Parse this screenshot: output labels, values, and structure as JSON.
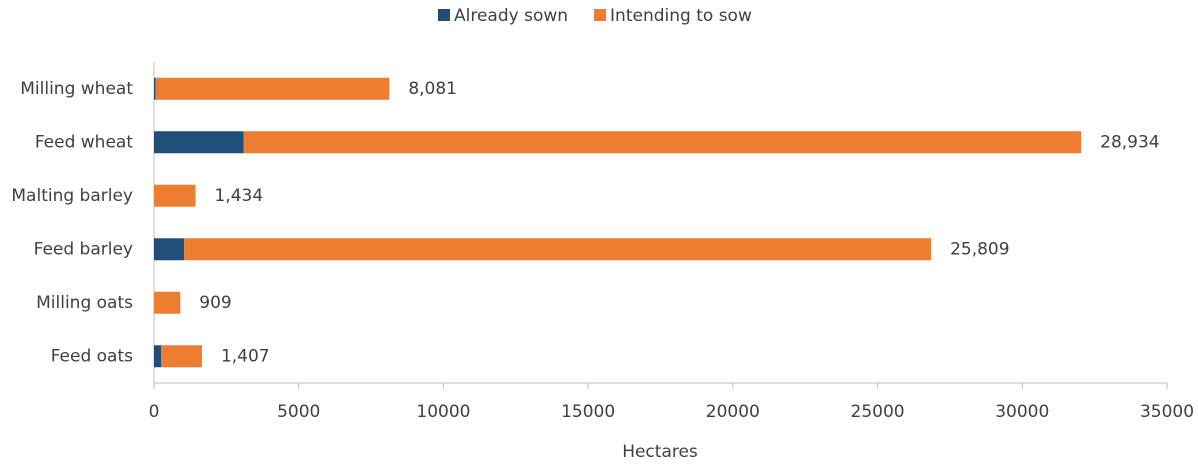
{
  "chart_data": {
    "type": "hbar-stacked",
    "categories": [
      "Milling wheat",
      "Feed wheat",
      "Malting barley",
      "Feed barley",
      "Milling oats",
      "Feed oats"
    ],
    "series": [
      {
        "name": "Already sown",
        "color": "#1f4e79",
        "values": [
          50,
          3100,
          0,
          1040,
          0,
          250
        ]
      },
      {
        "name": "Intending to sow",
        "color": "#ed7d31",
        "values": [
          8081,
          28934,
          1434,
          25809,
          909,
          1407
        ],
        "value_labels": [
          "8,081",
          "28,934",
          "1,434",
          "25,809",
          "909",
          "1,407"
        ]
      }
    ],
    "xlim": [
      0,
      35000
    ],
    "xticks": [
      0,
      5000,
      10000,
      15000,
      20000,
      25000,
      30000,
      35000
    ],
    "xlabel": "Hectares",
    "legend": "top"
  }
}
